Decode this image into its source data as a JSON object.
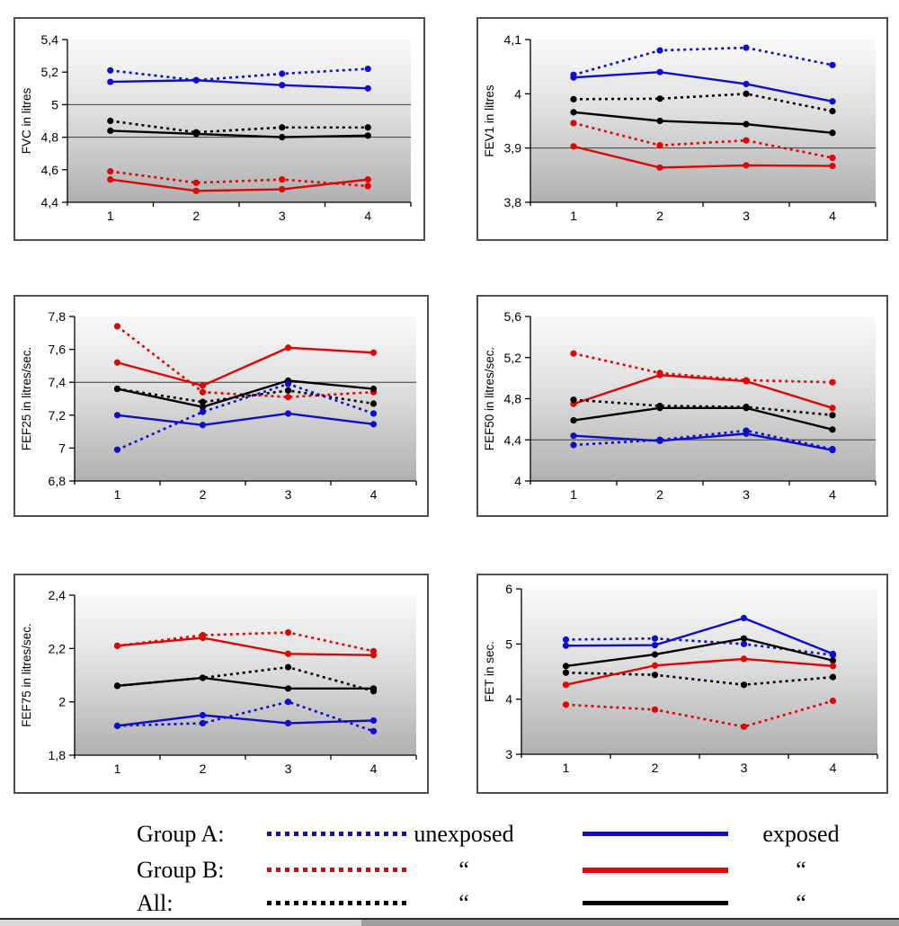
{
  "page": {
    "background": "#ffffff"
  },
  "colors": {
    "group_a": "#0d0dcc",
    "group_b": "#dd0505",
    "all": "#000000",
    "axis": "#000000",
    "gridline": "#3c3c3c",
    "plot_gradient_top": "#f9f9f9",
    "plot_gradient_bottom": "#b0b0b0"
  },
  "chart_data": [
    {
      "key": "fvc",
      "type": "line",
      "ylabel": "FVC in litres",
      "x_categories": [
        "1",
        "2",
        "3",
        "4"
      ],
      "ylim": [
        4.4,
        5.4
      ],
      "yticks": [
        {
          "v": 5.4,
          "label": "5,4"
        },
        {
          "v": 5.2,
          "label": "5,2"
        },
        {
          "v": 5.0,
          "label": "5"
        },
        {
          "v": 4.8,
          "label": "4,8"
        },
        {
          "v": 4.6,
          "label": "4,6"
        },
        {
          "v": 4.4,
          "label": "4,4"
        }
      ],
      "gridlines": [
        5.0,
        4.8
      ],
      "series": [
        {
          "name": "group-a-unexposed",
          "color_key": "group_a",
          "style": "dashed",
          "values": [
            5.21,
            5.15,
            5.19,
            5.22
          ]
        },
        {
          "name": "group-a-exposed",
          "color_key": "group_a",
          "style": "solid",
          "values": [
            5.14,
            5.15,
            5.12,
            5.1
          ]
        },
        {
          "name": "all-unexposed",
          "color_key": "all",
          "style": "dashed",
          "values": [
            4.9,
            4.83,
            4.86,
            4.86
          ]
        },
        {
          "name": "all-exposed",
          "color_key": "all",
          "style": "solid",
          "values": [
            4.84,
            4.82,
            4.8,
            4.81
          ]
        },
        {
          "name": "group-b-unexposed",
          "color_key": "group_b",
          "style": "dashed",
          "values": [
            4.59,
            4.52,
            4.54,
            4.5
          ]
        },
        {
          "name": "group-b-exposed",
          "color_key": "group_b",
          "style": "solid",
          "values": [
            4.54,
            4.47,
            4.48,
            4.54
          ]
        }
      ]
    },
    {
      "key": "fev1",
      "type": "line",
      "ylabel": "FEV1 in litres",
      "x_categories": [
        "1",
        "2",
        "3",
        "4"
      ],
      "ylim": [
        3.8,
        4.1
      ],
      "yticks": [
        {
          "v": 4.1,
          "label": "4,1"
        },
        {
          "v": 4.0,
          "label": "4"
        },
        {
          "v": 3.9,
          "label": "3,9"
        },
        {
          "v": 3.8,
          "label": "3,8"
        }
      ],
      "gridlines": [
        3.9
      ],
      "series": [
        {
          "name": "group-a-unexposed",
          "color_key": "group_a",
          "style": "dashed",
          "values": [
            4.035,
            4.08,
            4.085,
            4.053
          ]
        },
        {
          "name": "group-a-exposed",
          "color_key": "group_a",
          "style": "solid",
          "values": [
            4.03,
            4.04,
            4.018,
            3.986
          ]
        },
        {
          "name": "all-unexposed",
          "color_key": "all",
          "style": "dashed",
          "values": [
            3.99,
            3.991,
            4.0,
            3.968
          ]
        },
        {
          "name": "all-exposed",
          "color_key": "all",
          "style": "solid",
          "values": [
            3.966,
            3.95,
            3.944,
            3.928
          ]
        },
        {
          "name": "group-b-unexposed",
          "color_key": "group_b",
          "style": "dashed",
          "values": [
            3.946,
            3.905,
            3.914,
            3.882
          ]
        },
        {
          "name": "group-b-exposed",
          "color_key": "group_b",
          "style": "solid",
          "values": [
            3.903,
            3.864,
            3.868,
            3.867
          ]
        }
      ]
    },
    {
      "key": "fef25",
      "type": "line",
      "ylabel": "FEF25 in litres/sec.",
      "x_categories": [
        "1",
        "2",
        "3",
        "4"
      ],
      "ylim": [
        6.8,
        7.8
      ],
      "yticks": [
        {
          "v": 7.8,
          "label": "7,8"
        },
        {
          "v": 7.6,
          "label": "7,6"
        },
        {
          "v": 7.4,
          "label": "7,4"
        },
        {
          "v": 7.2,
          "label": "7,2"
        },
        {
          "v": 7.0,
          "label": "7"
        },
        {
          "v": 6.8,
          "label": "6,8"
        }
      ],
      "gridlines": [
        7.4
      ],
      "series": [
        {
          "name": "group-b-unexposed",
          "color_key": "group_b",
          "style": "dashed",
          "values": [
            7.74,
            7.34,
            7.31,
            7.34
          ]
        },
        {
          "name": "group-b-exposed",
          "color_key": "group_b",
          "style": "solid",
          "values": [
            7.52,
            7.38,
            7.61,
            7.58
          ]
        },
        {
          "name": "all-unexposed",
          "color_key": "all",
          "style": "dashed",
          "values": [
            7.36,
            7.28,
            7.35,
            7.27
          ]
        },
        {
          "name": "all-exposed",
          "color_key": "all",
          "style": "solid",
          "values": [
            7.36,
            7.25,
            7.41,
            7.36
          ]
        },
        {
          "name": "group-a-unexposed",
          "color_key": "group_a",
          "style": "dashed",
          "values": [
            6.99,
            7.22,
            7.39,
            7.21
          ]
        },
        {
          "name": "group-a-exposed",
          "color_key": "group_a",
          "style": "solid",
          "values": [
            7.2,
            7.14,
            7.21,
            7.145
          ]
        }
      ]
    },
    {
      "key": "fef50",
      "type": "line",
      "ylabel": "FEF50 in litres/sec.",
      "x_categories": [
        "1",
        "2",
        "3",
        "4"
      ],
      "ylim": [
        4.0,
        5.6
      ],
      "yticks": [
        {
          "v": 5.6,
          "label": "5,6"
        },
        {
          "v": 5.2,
          "label": "5,2"
        },
        {
          "v": 4.8,
          "label": "4,8"
        },
        {
          "v": 4.4,
          "label": "4,4"
        },
        {
          "v": 4.0,
          "label": "4"
        }
      ],
      "gridlines": [
        4.4
      ],
      "series": [
        {
          "name": "group-b-unexposed",
          "color_key": "group_b",
          "style": "dashed",
          "values": [
            5.24,
            5.05,
            4.98,
            4.96
          ]
        },
        {
          "name": "group-b-exposed",
          "color_key": "group_b",
          "style": "solid",
          "values": [
            4.75,
            5.03,
            4.97,
            4.71
          ]
        },
        {
          "name": "all-unexposed",
          "color_key": "all",
          "style": "dashed",
          "values": [
            4.79,
            4.73,
            4.72,
            4.64
          ]
        },
        {
          "name": "all-exposed",
          "color_key": "all",
          "style": "solid",
          "values": [
            4.59,
            4.71,
            4.71,
            4.5
          ]
        },
        {
          "name": "group-a-unexposed",
          "color_key": "group_a",
          "style": "dashed",
          "values": [
            4.35,
            4.4,
            4.49,
            4.31
          ]
        },
        {
          "name": "group-a-exposed",
          "color_key": "group_a",
          "style": "solid",
          "values": [
            4.44,
            4.39,
            4.46,
            4.3
          ]
        }
      ]
    },
    {
      "key": "fef75",
      "type": "line",
      "ylabel": "FEF75 in litres/sec.",
      "x_categories": [
        "1",
        "2",
        "3",
        "4"
      ],
      "ylim": [
        1.8,
        2.4
      ],
      "yticks": [
        {
          "v": 2.4,
          "label": "2,4"
        },
        {
          "v": 2.2,
          "label": "2,2"
        },
        {
          "v": 2.0,
          "label": "2"
        },
        {
          "v": 1.8,
          "label": "1,8"
        }
      ],
      "gridlines": [],
      "series": [
        {
          "name": "group-b-unexposed",
          "color_key": "group_b",
          "style": "dashed",
          "values": [
            2.21,
            2.25,
            2.26,
            2.19
          ]
        },
        {
          "name": "group-b-exposed",
          "color_key": "group_b",
          "style": "solid",
          "values": [
            2.21,
            2.24,
            2.18,
            2.175
          ]
        },
        {
          "name": "all-unexposed",
          "color_key": "all",
          "style": "dashed",
          "values": [
            2.06,
            2.09,
            2.13,
            2.04
          ]
        },
        {
          "name": "all-exposed",
          "color_key": "all",
          "style": "solid",
          "values": [
            2.06,
            2.09,
            2.05,
            2.05
          ]
        },
        {
          "name": "group-a-unexposed",
          "color_key": "group_a",
          "style": "dashed",
          "values": [
            1.91,
            1.92,
            2.0,
            1.89
          ]
        },
        {
          "name": "group-a-exposed",
          "color_key": "group_a",
          "style": "solid",
          "values": [
            1.91,
            1.95,
            1.92,
            1.93
          ]
        }
      ]
    },
    {
      "key": "fet",
      "type": "line",
      "ylabel": "FET in sec.",
      "x_categories": [
        "1",
        "2",
        "3",
        "4"
      ],
      "ylim": [
        3.0,
        6.0
      ],
      "yticks": [
        {
          "v": 6.0,
          "label": "6"
        },
        {
          "v": 5.0,
          "label": "5"
        },
        {
          "v": 4.0,
          "label": "4"
        },
        {
          "v": 3.0,
          "label": "3"
        }
      ],
      "gridlines": [],
      "series": [
        {
          "name": "group-a-unexposed",
          "color_key": "group_a",
          "style": "dashed",
          "values": [
            5.08,
            5.1,
            5.0,
            4.8
          ]
        },
        {
          "name": "group-a-exposed",
          "color_key": "group_a",
          "style": "solid",
          "values": [
            4.97,
            4.98,
            5.47,
            4.82
          ]
        },
        {
          "name": "all-unexposed",
          "color_key": "all",
          "style": "dashed",
          "values": [
            4.48,
            4.44,
            4.26,
            4.4
          ]
        },
        {
          "name": "all-exposed",
          "color_key": "all",
          "style": "solid",
          "values": [
            4.6,
            4.81,
            5.1,
            4.7
          ]
        },
        {
          "name": "group-b-unexposed",
          "color_key": "group_b",
          "style": "dashed",
          "values": [
            3.9,
            3.81,
            3.5,
            3.97
          ]
        },
        {
          "name": "group-b-exposed",
          "color_key": "group_b",
          "style": "solid",
          "values": [
            4.26,
            4.61,
            4.73,
            4.6
          ]
        }
      ]
    }
  ],
  "legend": {
    "rows": [
      {
        "group_label": "Group A:",
        "color_key": "group_a",
        "dashed_text": "unexposed",
        "solid_text": "exposed"
      },
      {
        "group_label": "Group B:",
        "color_key": "group_b",
        "dashed_text": "“",
        "solid_text": "“"
      },
      {
        "group_label": "All:",
        "color_key": "all",
        "dashed_text": "“",
        "solid_text": "“"
      }
    ]
  }
}
